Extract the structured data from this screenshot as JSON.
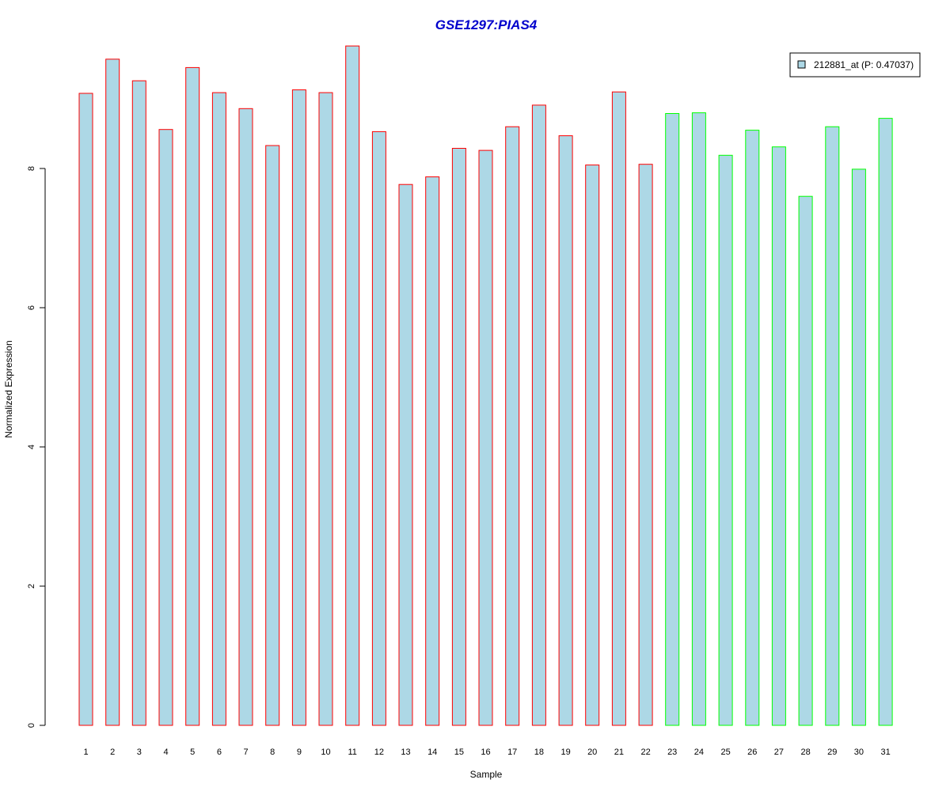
{
  "colors": {
    "title": "#0000CC",
    "bar_fill": "#ADD8E6",
    "group1_border": "#FF0000",
    "group2_border": "#00FF00",
    "legend_border": "#000000"
  },
  "chart_data": {
    "type": "bar",
    "title": "GSE1297:PIAS4",
    "xlabel": "Sample",
    "ylabel": "Normalized Expression",
    "ylim": [
      0,
      9.75
    ],
    "yticks": [
      0,
      2,
      4,
      6,
      8
    ],
    "grid": false,
    "legend_position": "top-right",
    "legend": [
      "212881_at (P: 0.47037)"
    ],
    "categories": [
      "1",
      "2",
      "3",
      "4",
      "5",
      "6",
      "7",
      "8",
      "9",
      "10",
      "11",
      "12",
      "13",
      "14",
      "15",
      "16",
      "17",
      "18",
      "19",
      "20",
      "21",
      "22",
      "23",
      "24",
      "25",
      "26",
      "27",
      "28",
      "29",
      "30",
      "31"
    ],
    "values": [
      9.08,
      9.57,
      9.26,
      8.56,
      9.45,
      9.09,
      8.86,
      8.33,
      9.13,
      9.09,
      9.76,
      8.53,
      7.77,
      7.88,
      8.29,
      8.26,
      8.6,
      8.91,
      8.47,
      8.05,
      9.1,
      8.06,
      8.79,
      8.8,
      8.19,
      8.55,
      8.31,
      7.6,
      8.6,
      7.99,
      8.72
    ],
    "groups": [
      1,
      1,
      1,
      1,
      1,
      1,
      1,
      1,
      1,
      1,
      1,
      1,
      1,
      1,
      1,
      1,
      1,
      1,
      1,
      1,
      1,
      1,
      2,
      2,
      2,
      2,
      2,
      2,
      2,
      2,
      2
    ]
  }
}
